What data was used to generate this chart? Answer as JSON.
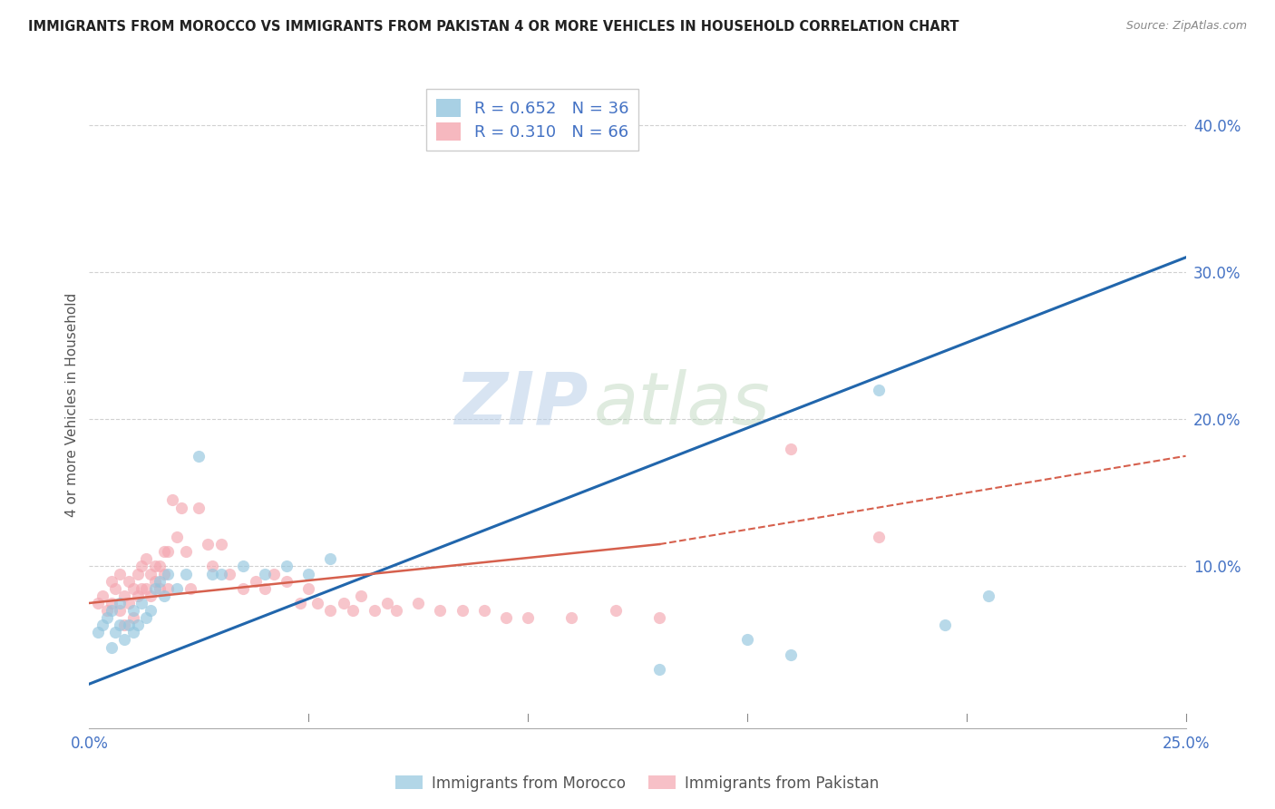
{
  "title": "IMMIGRANTS FROM MOROCCO VS IMMIGRANTS FROM PAKISTAN 4 OR MORE VEHICLES IN HOUSEHOLD CORRELATION CHART",
  "source": "Source: ZipAtlas.com",
  "ylabel": "4 or more Vehicles in Household",
  "xlim": [
    0.0,
    0.25
  ],
  "ylim": [
    -0.01,
    0.43
  ],
  "plot_ylim": [
    0.0,
    0.42
  ],
  "xticks": [
    0.0,
    0.05,
    0.1,
    0.15,
    0.2,
    0.25
  ],
  "xticklabels": [
    "0.0%",
    "",
    "",
    "",
    "",
    "25.0%"
  ],
  "yticks": [
    0.1,
    0.2,
    0.3,
    0.4
  ],
  "yticklabels": [
    "10.0%",
    "20.0%",
    "30.0%",
    "40.0%"
  ],
  "morocco_color": "#92c5de",
  "pakistan_color": "#f4a6b0",
  "morocco_line_color": "#2166ac",
  "pakistan_line_color": "#d6604d",
  "r_morocco": 0.652,
  "n_morocco": 36,
  "r_pakistan": 0.31,
  "n_pakistan": 66,
  "watermark_zip": "ZIP",
  "watermark_atlas": "atlas",
  "legend_label_morocco": "Immigrants from Morocco",
  "legend_label_pakistan": "Immigrants from Pakistan",
  "morocco_x": [
    0.002,
    0.003,
    0.004,
    0.005,
    0.005,
    0.006,
    0.007,
    0.007,
    0.008,
    0.009,
    0.01,
    0.01,
    0.011,
    0.012,
    0.013,
    0.014,
    0.015,
    0.016,
    0.017,
    0.018,
    0.02,
    0.022,
    0.025,
    0.028,
    0.03,
    0.035,
    0.04,
    0.045,
    0.05,
    0.055,
    0.13,
    0.15,
    0.16,
    0.18,
    0.195,
    0.205
  ],
  "morocco_y": [
    0.055,
    0.06,
    0.065,
    0.045,
    0.07,
    0.055,
    0.06,
    0.075,
    0.05,
    0.06,
    0.07,
    0.055,
    0.06,
    0.075,
    0.065,
    0.07,
    0.085,
    0.09,
    0.08,
    0.095,
    0.085,
    0.095,
    0.175,
    0.095,
    0.095,
    0.1,
    0.095,
    0.1,
    0.095,
    0.105,
    0.03,
    0.05,
    0.04,
    0.22,
    0.06,
    0.08
  ],
  "pakistan_x": [
    0.002,
    0.003,
    0.004,
    0.005,
    0.005,
    0.006,
    0.007,
    0.007,
    0.008,
    0.008,
    0.009,
    0.009,
    0.01,
    0.01,
    0.011,
    0.011,
    0.012,
    0.012,
    0.013,
    0.013,
    0.014,
    0.014,
    0.015,
    0.015,
    0.016,
    0.016,
    0.017,
    0.017,
    0.018,
    0.018,
    0.019,
    0.02,
    0.021,
    0.022,
    0.023,
    0.025,
    0.027,
    0.028,
    0.03,
    0.032,
    0.035,
    0.038,
    0.04,
    0.042,
    0.045,
    0.048,
    0.05,
    0.052,
    0.055,
    0.058,
    0.06,
    0.062,
    0.065,
    0.068,
    0.07,
    0.075,
    0.08,
    0.085,
    0.09,
    0.095,
    0.1,
    0.11,
    0.12,
    0.13,
    0.16,
    0.18
  ],
  "pakistan_y": [
    0.075,
    0.08,
    0.07,
    0.09,
    0.075,
    0.085,
    0.095,
    0.07,
    0.08,
    0.06,
    0.09,
    0.075,
    0.085,
    0.065,
    0.095,
    0.08,
    0.1,
    0.085,
    0.105,
    0.085,
    0.095,
    0.08,
    0.1,
    0.09,
    0.1,
    0.085,
    0.11,
    0.095,
    0.11,
    0.085,
    0.145,
    0.12,
    0.14,
    0.11,
    0.085,
    0.14,
    0.115,
    0.1,
    0.115,
    0.095,
    0.085,
    0.09,
    0.085,
    0.095,
    0.09,
    0.075,
    0.085,
    0.075,
    0.07,
    0.075,
    0.07,
    0.08,
    0.07,
    0.075,
    0.07,
    0.075,
    0.07,
    0.07,
    0.07,
    0.065,
    0.065,
    0.065,
    0.07,
    0.065,
    0.18,
    0.12
  ]
}
